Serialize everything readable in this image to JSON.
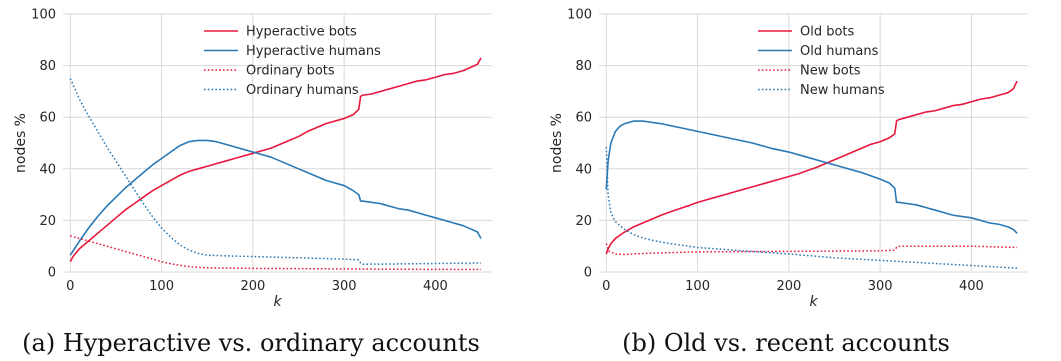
{
  "colors": {
    "bots": "#e8173d",
    "humans": "#2a78b4",
    "grid": "#d9d9d9"
  },
  "chart_data": [
    {
      "type": "line",
      "caption": "(a) Hyperactive vs. ordinary accounts",
      "xlabel": "k",
      "ylabel": "nodes %",
      "xlim": [
        -8,
        462
      ],
      "ylim": [
        0,
        100
      ],
      "xticks": [
        0,
        100,
        200,
        300,
        400
      ],
      "yticks": [
        0,
        20,
        40,
        60,
        80,
        100
      ],
      "grid": true,
      "legend_position": "top-center",
      "series": [
        {
          "name": "Hyperactive bots",
          "color": "#e8173d",
          "style": "solid",
          "x": [
            0,
            3,
            10,
            20,
            30,
            40,
            50,
            60,
            70,
            80,
            90,
            100,
            110,
            120,
            130,
            140,
            150,
            160,
            170,
            180,
            190,
            200,
            210,
            220,
            230,
            240,
            250,
            260,
            270,
            280,
            290,
            300,
            310,
            316,
            318,
            320,
            330,
            340,
            350,
            360,
            370,
            380,
            390,
            400,
            410,
            420,
            430,
            440,
            446,
            450
          ],
          "y": [
            4,
            6,
            9,
            12,
            15,
            18,
            21,
            24,
            26.5,
            29,
            31.5,
            33.5,
            35.5,
            37.5,
            39,
            40,
            41,
            42,
            43,
            44,
            45,
            46,
            47,
            48,
            49.5,
            51,
            52.5,
            54.5,
            56,
            57.5,
            58.5,
            59.5,
            61,
            63,
            68,
            68.5,
            69,
            70,
            71,
            72,
            73,
            74,
            74.5,
            75.5,
            76.5,
            77,
            78,
            79.5,
            80.5,
            83
          ]
        },
        {
          "name": "Hyperactive humans",
          "color": "#2a78b4",
          "style": "solid",
          "x": [
            0,
            10,
            20,
            30,
            40,
            50,
            60,
            70,
            80,
            90,
            100,
            110,
            120,
            130,
            140,
            150,
            160,
            170,
            180,
            190,
            200,
            210,
            220,
            230,
            240,
            250,
            260,
            270,
            280,
            290,
            300,
            310,
            316,
            318,
            320,
            330,
            340,
            350,
            360,
            370,
            380,
            390,
            400,
            410,
            420,
            430,
            440,
            446,
            450
          ],
          "y": [
            6.5,
            12,
            17,
            21.5,
            25.5,
            29,
            32.5,
            35.5,
            38.5,
            41.5,
            44,
            46.5,
            49,
            50.5,
            51,
            51,
            50.5,
            49.5,
            48.5,
            47.5,
            46.5,
            45.5,
            44.5,
            43,
            41.5,
            40,
            38.5,
            37,
            35.5,
            34.5,
            33.5,
            31.5,
            30,
            27.5,
            27.5,
            27,
            26.5,
            25.5,
            24.5,
            24,
            23,
            22,
            21,
            20,
            19,
            18,
            16.5,
            15.5,
            13
          ]
        },
        {
          "name": "Ordinary bots",
          "color": "#e8173d",
          "style": "dotted",
          "x": [
            0,
            10,
            20,
            30,
            40,
            50,
            60,
            70,
            80,
            90,
            100,
            110,
            120,
            130,
            140,
            150,
            200,
            250,
            300,
            350,
            400,
            450
          ],
          "y": [
            14,
            13,
            12,
            11,
            10,
            9,
            8,
            7,
            6,
            5,
            4,
            3.2,
            2.6,
            2.1,
            1.8,
            1.6,
            1.4,
            1.3,
            1.2,
            1.1,
            1.0,
            1.0
          ]
        },
        {
          "name": "Ordinary humans",
          "color": "#2a78b4",
          "style": "dotted",
          "x": [
            0,
            5,
            10,
            20,
            30,
            40,
            50,
            60,
            70,
            80,
            90,
            100,
            110,
            120,
            130,
            140,
            150,
            175,
            200,
            250,
            300,
            316,
            318,
            320,
            350,
            400,
            450
          ],
          "y": [
            75,
            71,
            67,
            60.5,
            54.5,
            48.5,
            43,
            37.5,
            32,
            26.5,
            21.5,
            17,
            13.5,
            10.5,
            8.5,
            7.2,
            6.5,
            6.2,
            6,
            5.5,
            5,
            4.7,
            3.5,
            3,
            3.1,
            3.3,
            3.5
          ]
        }
      ]
    },
    {
      "type": "line",
      "caption": "(b) Old vs. recent accounts",
      "xlabel": "k",
      "ylabel": "nodes %",
      "xlim": [
        -8,
        462
      ],
      "ylim": [
        0,
        100
      ],
      "xticks": [
        0,
        100,
        200,
        300,
        400
      ],
      "yticks": [
        0,
        20,
        40,
        60,
        80,
        100
      ],
      "grid": true,
      "legend_position": "top-center",
      "series": [
        {
          "name": "Old bots",
          "color": "#e8173d",
          "style": "solid",
          "x": [
            0,
            2,
            5,
            10,
            20,
            30,
            40,
            50,
            60,
            70,
            80,
            90,
            100,
            110,
            120,
            130,
            140,
            150,
            160,
            170,
            180,
            190,
            200,
            210,
            220,
            230,
            240,
            250,
            260,
            270,
            280,
            290,
            300,
            310,
            316,
            318,
            320,
            330,
            340,
            350,
            360,
            370,
            380,
            390,
            400,
            410,
            420,
            430,
            440,
            446,
            450
          ],
          "y": [
            7,
            9,
            11,
            13,
            15.5,
            17.5,
            19,
            20.5,
            22,
            23.3,
            24.5,
            25.7,
            27,
            28,
            29,
            30,
            31,
            32,
            33,
            34,
            35,
            36,
            37,
            38,
            39.3,
            40.5,
            42,
            43.5,
            45,
            46.5,
            48,
            49.5,
            50.5,
            52,
            53.5,
            58.5,
            59,
            60,
            61,
            62,
            62.5,
            63.5,
            64.5,
            65,
            66,
            67,
            67.5,
            68.5,
            69.5,
            71,
            74
          ]
        },
        {
          "name": "Old humans",
          "color": "#2a78b4",
          "style": "solid",
          "x": [
            0,
            2,
            5,
            10,
            15,
            20,
            25,
            30,
            40,
            50,
            60,
            80,
            100,
            120,
            140,
            160,
            180,
            200,
            220,
            240,
            260,
            280,
            300,
            310,
            316,
            318,
            320,
            330,
            340,
            350,
            360,
            370,
            380,
            390,
            400,
            410,
            420,
            430,
            440,
            446,
            450
          ],
          "y": [
            32,
            43,
            50,
            54.5,
            56.5,
            57.5,
            58,
            58.5,
            58.5,
            58,
            57.5,
            56,
            54.5,
            53,
            51.5,
            50,
            48,
            46.5,
            44.5,
            42.5,
            40.5,
            38.5,
            36,
            34.5,
            32.5,
            27,
            27,
            26.5,
            26,
            25,
            24,
            23,
            22,
            21.5,
            21,
            20,
            19,
            18.5,
            17.5,
            16.5,
            15
          ]
        },
        {
          "name": "New bots",
          "color": "#e8173d",
          "style": "dotted",
          "x": [
            0,
            3,
            10,
            20,
            30,
            50,
            100,
            150,
            200,
            250,
            300,
            316,
            318,
            320,
            350,
            400,
            450
          ],
          "y": [
            11,
            8,
            7,
            6.8,
            7,
            7.3,
            7.8,
            7.9,
            8,
            8.1,
            8.2,
            8.5,
            9.5,
            10,
            10,
            10,
            9.5
          ]
        },
        {
          "name": "New humans",
          "color": "#2a78b4",
          "style": "dotted",
          "x": [
            0,
            2,
            5,
            10,
            20,
            30,
            40,
            50,
            70,
            100,
            150,
            200,
            250,
            300,
            350,
            400,
            450
          ],
          "y": [
            48.5,
            30,
            23,
            19.5,
            16.5,
            14.5,
            13.2,
            12.3,
            11,
            9.5,
            8.2,
            7,
            5.5,
            4.5,
            3.5,
            2.5,
            1.5
          ]
        }
      ]
    }
  ]
}
